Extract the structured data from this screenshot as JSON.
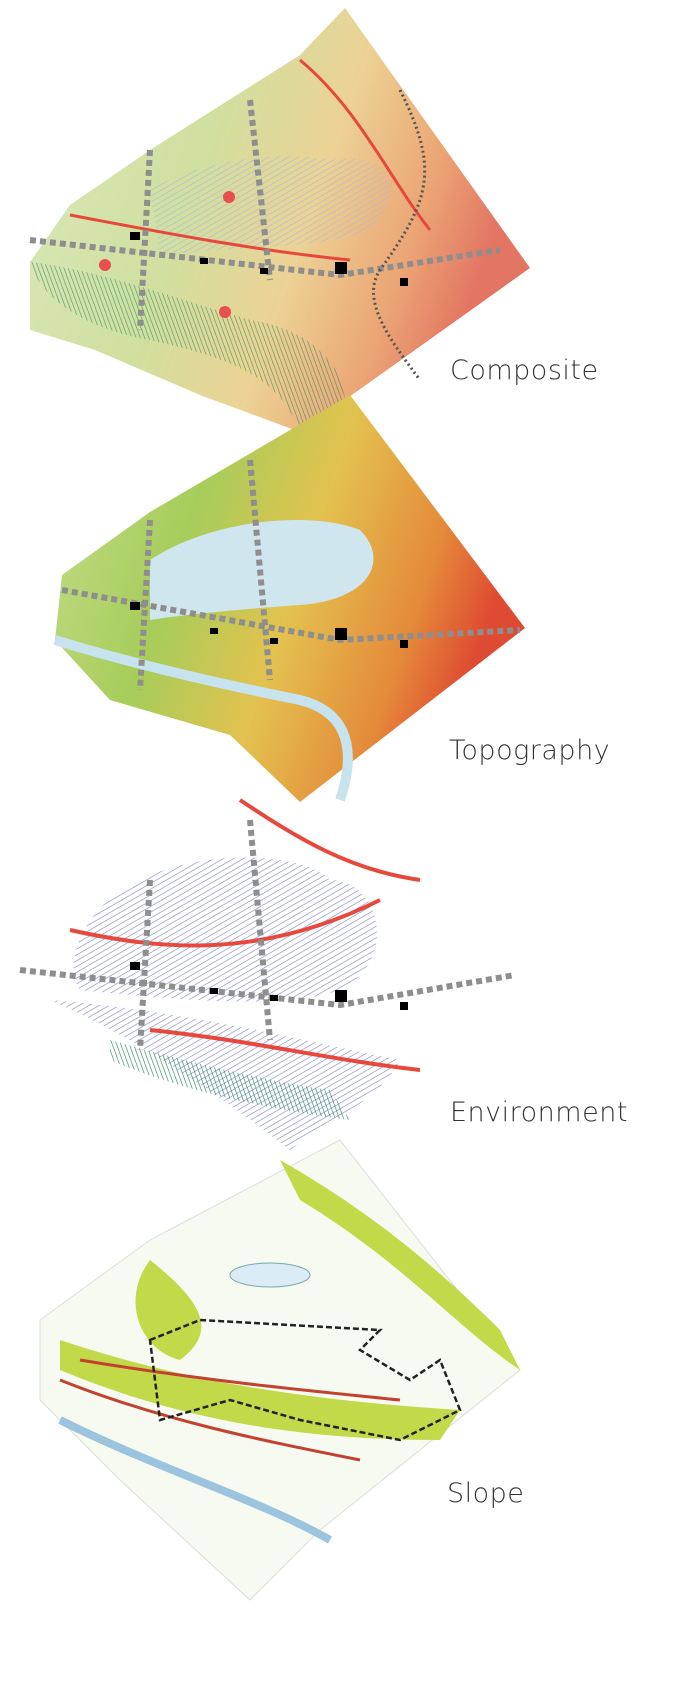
{
  "layers": [
    {
      "label": "Composite"
    },
    {
      "label": "Topography"
    },
    {
      "label": "Environment"
    },
    {
      "label": "Slope"
    }
  ]
}
